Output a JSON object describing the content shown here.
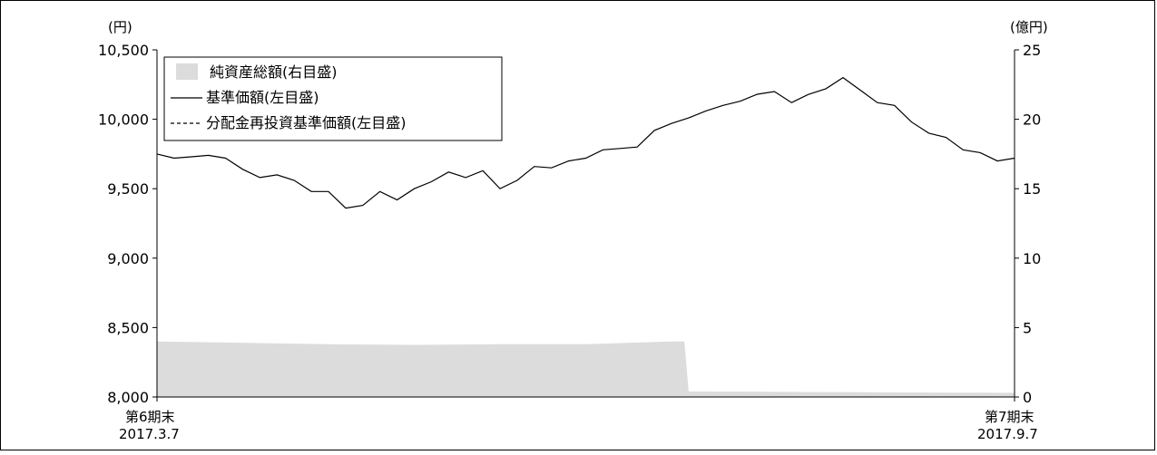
{
  "chart_data": {
    "type": "line",
    "y_left_unit": "(円)",
    "y_right_unit": "(億円)",
    "y_left_ticks": [
      "10,500",
      "10,000",
      "9,500",
      "9,000",
      "8,500",
      "8,000"
    ],
    "y_left_values": [
      10500,
      10000,
      9500,
      9000,
      8500,
      8000
    ],
    "y_right_ticks": [
      "25",
      "20",
      "15",
      "10",
      "5",
      "0"
    ],
    "y_right_values": [
      25,
      20,
      15,
      10,
      5,
      0
    ],
    "ylim_left": [
      8000,
      10500
    ],
    "ylim_right": [
      0,
      25
    ],
    "x_start_labels": [
      "第6期末",
      "2017.3.7"
    ],
    "x_end_labels": [
      "第7期末",
      "2017.9.7"
    ],
    "legend": {
      "placement": "top-left",
      "items": [
        {
          "label": "純資産総額(右目盛)",
          "style": "area"
        },
        {
          "label": "基準価額(左目盛)",
          "style": "solid"
        },
        {
          "label": "分配金再投資基準価額(左目盛)",
          "style": "dashed"
        }
      ]
    },
    "colors": {
      "area": "#dcdcdc",
      "line": "#000000"
    },
    "series": [
      {
        "name": "純資産総額(右目盛)",
        "axis": "right",
        "type": "area",
        "x": [
          0,
          0.1,
          0.2,
          0.3,
          0.4,
          0.5,
          0.55,
          0.6,
          0.615,
          0.62,
          0.7,
          0.8,
          0.9,
          1.0
        ],
        "values": [
          4.0,
          3.9,
          3.8,
          3.75,
          3.8,
          3.8,
          3.9,
          4.0,
          4.0,
          0.4,
          0.38,
          0.35,
          0.32,
          0.3
        ]
      },
      {
        "name": "基準価額(左目盛)",
        "axis": "left",
        "type": "line",
        "x": [
          0,
          0.02,
          0.04,
          0.06,
          0.08,
          0.1,
          0.12,
          0.14,
          0.16,
          0.18,
          0.2,
          0.22,
          0.24,
          0.26,
          0.28,
          0.3,
          0.32,
          0.34,
          0.36,
          0.38,
          0.4,
          0.42,
          0.44,
          0.46,
          0.48,
          0.5,
          0.52,
          0.54,
          0.56,
          0.58,
          0.6,
          0.62,
          0.64,
          0.66,
          0.68,
          0.7,
          0.72,
          0.74,
          0.76,
          0.78,
          0.8,
          0.82,
          0.84,
          0.86,
          0.88,
          0.9,
          0.92,
          0.94,
          0.96,
          0.98,
          1.0
        ],
        "values": [
          9750,
          9720,
          9730,
          9740,
          9720,
          9640,
          9580,
          9600,
          9560,
          9480,
          9480,
          9360,
          9380,
          9480,
          9420,
          9500,
          9550,
          9620,
          9580,
          9630,
          9500,
          9560,
          9660,
          9650,
          9700,
          9720,
          9780,
          9790,
          9800,
          9920,
          9970,
          10010,
          10060,
          10100,
          10130,
          10180,
          10200,
          10120,
          10180,
          10220,
          10300,
          10210,
          10120,
          10100,
          9980,
          9900,
          9870,
          9780,
          9760,
          9700,
          9720
        ]
      }
    ]
  }
}
